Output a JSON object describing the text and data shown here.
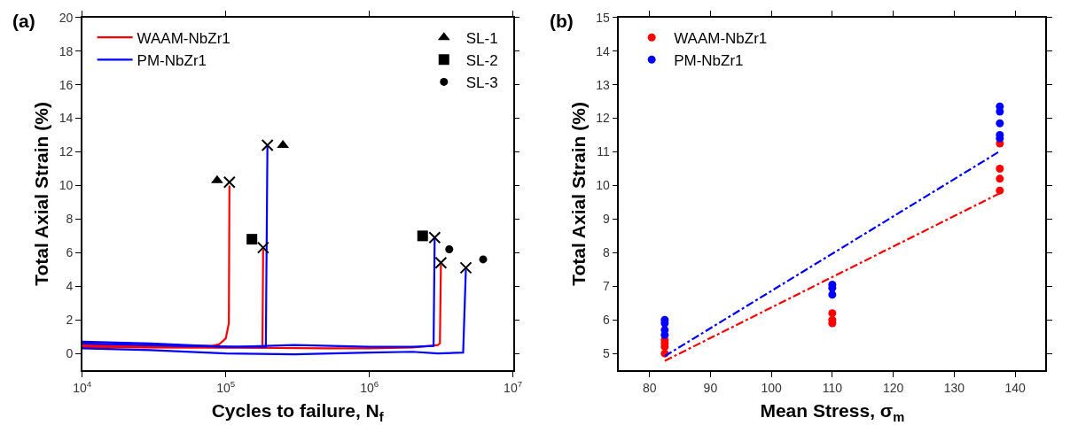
{
  "chart_data": [
    {
      "type": "line",
      "xlabel": "Cycles to failure, N$_{f}$",
      "ylabel": "Total Axial Strain (%)",
      "annotations": [
        "(a)"
      ],
      "log": "x",
      "xlim": [
        10000,
        10000000
      ],
      "xticks": [
        {
          "value": 10000,
          "label": "10$^{4}$"
        },
        {
          "value": 100000,
          "label": "10$^{5}$"
        },
        {
          "value": 1000000,
          "label": "10$^{6}$"
        },
        {
          "value": 10000000,
          "label": "10$^{7}$"
        }
      ],
      "ylim": [
        -1,
        20
      ],
      "yticks": [
        0,
        2,
        4,
        6,
        8,
        10,
        12,
        14,
        16,
        18,
        20
      ],
      "legend": "top left",
      "marker": "none",
      "line_style": "solid",
      "series": [
        {
          "name": "WAAM-NbZr1",
          "color": "#ff0000",
          "x": [
            10000,
            20000,
            50000,
            80000,
            90000,
            100000,
            105000,
            106000
          ],
          "values": [
            0.5,
            0.45,
            0.45,
            0.45,
            0.55,
            0.9,
            1.8,
            10.0
          ]
        },
        {
          "color": "#ff0000",
          "x": [
            10000,
            30000,
            100000,
            180000,
            182000
          ],
          "values": [
            0.4,
            0.35,
            0.35,
            0.35,
            6.2
          ]
        },
        {
          "color": "#ff0000",
          "x": [
            10000,
            100000,
            500000,
            1000000,
            2000000,
            3000000,
            3100000,
            3150000
          ],
          "values": [
            0.4,
            0.35,
            0.3,
            0.3,
            0.35,
            0.5,
            0.6,
            5.3
          ]
        },
        {
          "name": "PM-NbZr1",
          "color": "#0000ff",
          "x": [
            10000,
            30000,
            100000,
            150000,
            190000,
            195000
          ],
          "values": [
            0.7,
            0.6,
            0.4,
            0.4,
            0.4,
            12.4
          ]
        },
        {
          "color": "#0000ff",
          "x": [
            10000,
            50000,
            120000,
            300000,
            1000000,
            2000000,
            2800000,
            2850000
          ],
          "values": [
            0.6,
            0.45,
            0.4,
            0.5,
            0.4,
            0.4,
            0.45,
            6.9
          ]
        },
        {
          "color": "#0000ff",
          "x": [
            10000,
            30000,
            100000,
            300000,
            1000000,
            2000000,
            3000000,
            4500000,
            4700000
          ],
          "values": [
            0.3,
            0.2,
            0.0,
            -0.05,
            0.05,
            0.1,
            0.0,
            0.05,
            5.0
          ]
        },
        {
          "type": "scatter",
          "marker": "cross",
          "color": "#000000",
          "x": [
            106000,
            182000,
            195000,
            2850000,
            3150000,
            4700000
          ],
          "values": [
            10.2,
            6.3,
            12.4,
            6.9,
            5.4,
            5.1
          ]
        },
        {
          "type": "scatter",
          "name": "SL-1",
          "marker": "triangle",
          "color": "#000000",
          "x": [
            87000,
            250000
          ],
          "values": [
            10.3,
            12.4
          ]
        },
        {
          "type": "scatter",
          "name": "SL-2",
          "marker": "square",
          "color": "#000000",
          "x": [
            152000,
            2350000
          ],
          "values": [
            6.8,
            7.0
          ]
        },
        {
          "type": "scatter",
          "name": "SL-3",
          "marker": "circle",
          "color": "#000000",
          "x": [
            3600000,
            6200000
          ],
          "values": [
            6.2,
            5.6
          ]
        }
      ]
    },
    {
      "type": "scatter",
      "xlabel": "Mean Stress, σ$_{m}$",
      "ylabel": "Total Axial Strain (%)",
      "annotations": [
        "(b)"
      ],
      "xlim": [
        75,
        145
      ],
      "xticks": [
        80,
        90,
        100,
        110,
        120,
        130,
        140
      ],
      "ylim": [
        4.5,
        15
      ],
      "yticks": [
        5,
        6,
        7,
        8,
        9,
        10,
        11,
        12,
        13,
        14,
        15
      ],
      "legend": "top left",
      "marker": "circle",
      "series": [
        {
          "name": "WAAM-NbZr1",
          "color": "#ff0000",
          "x": [
            82.5,
            82.5,
            82.5,
            82.5,
            110,
            110,
            110,
            137.5,
            137.5,
            137.5,
            137.5
          ],
          "values": [
            5.0,
            5.2,
            5.3,
            5.4,
            6.2,
            6.0,
            5.9,
            11.25,
            10.5,
            10.2,
            9.85
          ]
        },
        {
          "name": "PM-NbZr1",
          "color": "#0000ff",
          "x": [
            82.5,
            82.5,
            82.5,
            82.5,
            110,
            110,
            110,
            137.5,
            137.5,
            137.5,
            137.5,
            137.5
          ],
          "values": [
            6.0,
            5.9,
            5.7,
            5.55,
            7.05,
            6.95,
            6.75,
            12.35,
            12.2,
            11.85,
            11.5,
            11.4
          ]
        },
        {
          "type": "line",
          "marker": "none",
          "line_style": "dashdot",
          "color": "#ff0000",
          "x": [
            82.5,
            137.5
          ],
          "values": [
            4.78,
            9.77
          ]
        },
        {
          "type": "line",
          "marker": "none",
          "line_style": "dashdot",
          "color": "#0000ff",
          "x": [
            82.5,
            137.5
          ],
          "values": [
            4.92,
            11.02
          ]
        }
      ]
    }
  ]
}
